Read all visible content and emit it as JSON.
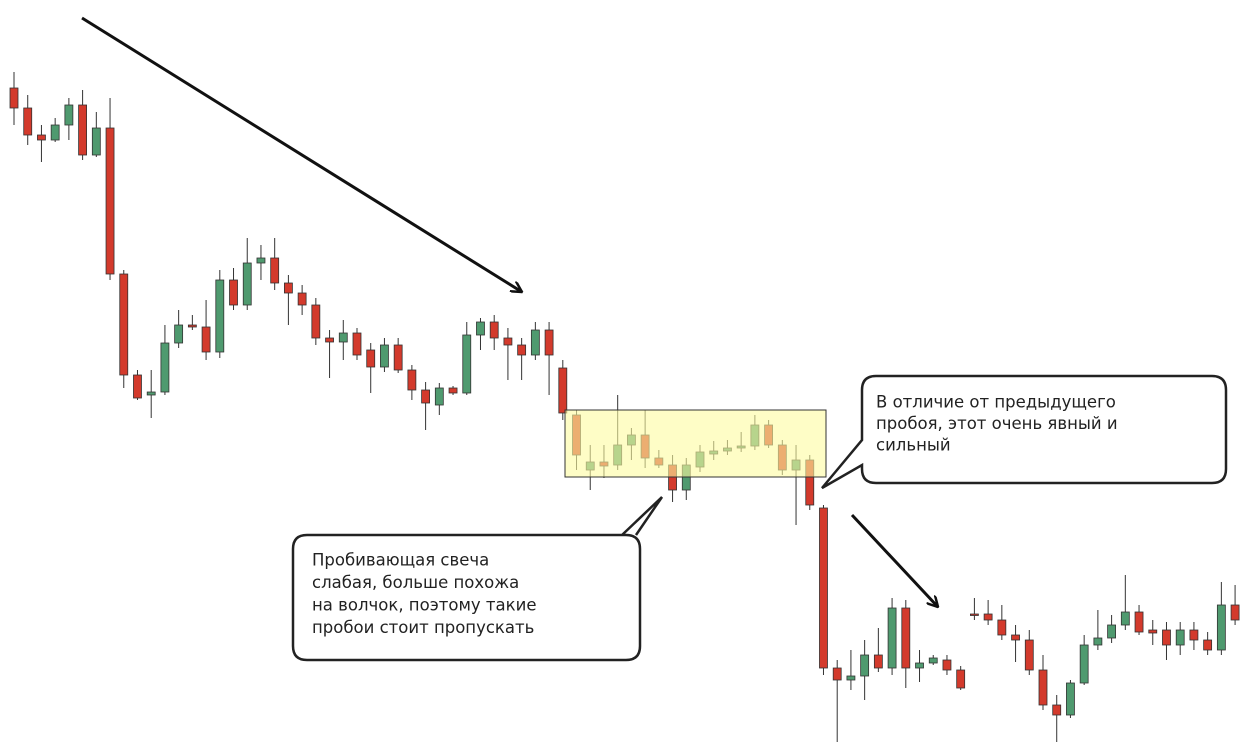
{
  "chart_data": {
    "type": "candlestick",
    "up_color": "#4f9a6f",
    "down_color": "#d33a2c",
    "ylim": [
      0,
      744
    ],
    "open": [
      656,
      636,
      609,
      604,
      619,
      639,
      589,
      616,
      470,
      369,
      349,
      352,
      401,
      419,
      417,
      392,
      464,
      439,
      481,
      486,
      461,
      451,
      439,
      406,
      402,
      411,
      394,
      377,
      399,
      374,
      354,
      339,
      356,
      351,
      409,
      422,
      406,
      399,
      389,
      414,
      376,
      329,
      274,
      282,
      279,
      299,
      309,
      286,
      279,
      254,
      277,
      290,
      293,
      296,
      298,
      319,
      299,
      274,
      284,
      236,
      76,
      64,
      68,
      89,
      76,
      136,
      76,
      81,
      84,
      74,
      130,
      130,
      124,
      109,
      104,
      74,
      39,
      29,
      61,
      99,
      106,
      119,
      132,
      114,
      114,
      99,
      114,
      104,
      94,
      139
    ],
    "high": [
      672,
      649,
      619,
      626,
      646,
      654,
      632,
      646,
      474,
      374,
      374,
      419,
      434,
      429,
      444,
      474,
      476,
      506,
      499,
      506,
      469,
      459,
      446,
      414,
      424,
      416,
      401,
      406,
      406,
      379,
      362,
      361,
      358,
      422,
      426,
      429,
      416,
      406,
      422,
      422,
      384,
      334,
      299,
      299,
      349,
      316,
      334,
      294,
      289,
      286,
      299,
      303,
      304,
      312,
      329,
      324,
      304,
      299,
      289,
      239,
      84,
      94,
      104,
      116,
      146,
      144,
      94,
      89,
      89,
      78,
      146,
      144,
      139,
      119,
      114,
      89,
      49,
      64,
      109,
      134,
      129,
      169,
      139,
      124,
      122,
      122,
      122,
      112,
      162,
      159
    ],
    "low": [
      619,
      599,
      582,
      602,
      604,
      584,
      587,
      464,
      356,
      344,
      326,
      349,
      396,
      414,
      384,
      386,
      434,
      434,
      464,
      454,
      419,
      429,
      399,
      366,
      384,
      384,
      351,
      372,
      371,
      344,
      314,
      329,
      349,
      349,
      394,
      394,
      364,
      364,
      384,
      349,
      324,
      274,
      254,
      266,
      274,
      284,
      276,
      276,
      242,
      244,
      272,
      284,
      289,
      292,
      294,
      296,
      269,
      219,
      234,
      69,
      2,
      54,
      44,
      72,
      69,
      56,
      62,
      79,
      69,
      54,
      124,
      119,
      104,
      82,
      69,
      34,
      2,
      26,
      59,
      94,
      101,
      114,
      109,
      99,
      84,
      89,
      94,
      89,
      89,
      119
    ],
    "close": [
      636,
      609,
      604,
      619,
      639,
      589,
      616,
      470,
      369,
      346,
      352,
      401,
      419,
      417,
      392,
      464,
      439,
      481,
      486,
      461,
      451,
      439,
      406,
      402,
      411,
      389,
      377,
      399,
      374,
      354,
      341,
      356,
      351,
      409,
      422,
      406,
      399,
      389,
      414,
      389,
      331,
      289,
      282,
      278,
      299,
      309,
      286,
      279,
      254,
      279,
      292,
      293,
      296,
      298,
      319,
      299,
      274,
      284,
      239,
      76,
      64,
      68,
      89,
      76,
      136,
      76,
      81,
      86,
      74,
      56,
      129,
      124,
      109,
      104,
      74,
      39,
      29,
      61,
      99,
      106,
      119,
      132,
      112,
      111,
      99,
      114,
      104,
      94,
      139,
      124
    ],
    "annotations": [
      {
        "lines": [
          "В отличие от предыдущего",
          "пробоя, этот очень явный и",
          "сильный"
        ]
      },
      {
        "lines": [
          "Пробивающая свеча",
          "слабая, больше похожа",
          "на волчок, поэтому такие",
          "пробои стоит пропускать"
        ]
      }
    ]
  }
}
